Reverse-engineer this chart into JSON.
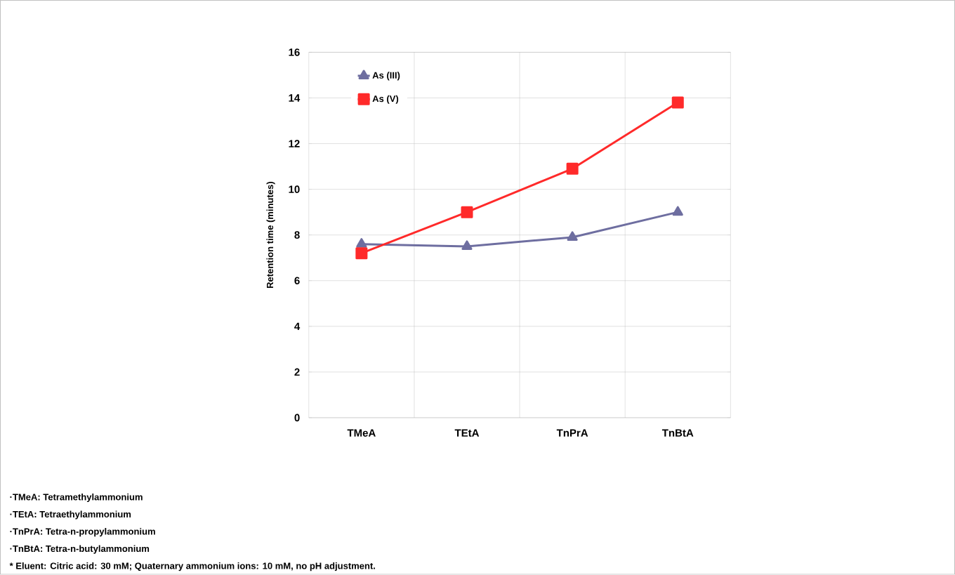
{
  "chart_data": {
    "type": "line",
    "ylabel": "Retention time (minutes)",
    "categories": [
      "TMeA",
      "TEtA",
      "TnPrA",
      "TnBtA"
    ],
    "series": [
      {
        "name": "As (III)",
        "color": "#6e6ea0",
        "marker": "triangle",
        "values": [
          7.6,
          7.5,
          7.9,
          9.0
        ]
      },
      {
        "name": "As (V)",
        "color": "#ff2a2a",
        "marker": "square",
        "values": [
          7.2,
          9.0,
          10.9,
          13.8
        ]
      }
    ],
    "ylim": [
      0,
      16
    ],
    "yticks": [
      0,
      2,
      4,
      6,
      8,
      10,
      12,
      14,
      16
    ],
    "grid": true,
    "legend": "top left",
    "annotations": [
      "·TMeA: Tetramethylammonium",
      "·TEtA: Tetraethylammonium",
      "·TnPrA: Tetra-n-propylammonium",
      "·TnBtA: Tetra-n-butylammonium",
      "* Eluent: Citric acid: 30 mM; Quaternary ammonium ions: 10 mM, no pH adjustment."
    ]
  }
}
